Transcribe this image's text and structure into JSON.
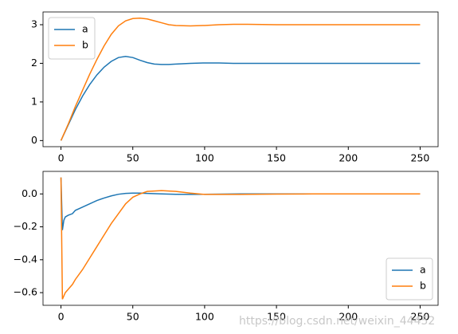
{
  "chart_data": [
    {
      "type": "line",
      "x": [
        0,
        5,
        10,
        15,
        20,
        25,
        30,
        35,
        40,
        45,
        50,
        55,
        60,
        65,
        70,
        75,
        80,
        90,
        100,
        110,
        120,
        130,
        150,
        175,
        200,
        225,
        250
      ],
      "series": [
        {
          "name": "a",
          "color": "#1f77b4",
          "values": [
            0,
            0.4,
            0.8,
            1.15,
            1.45,
            1.7,
            1.9,
            2.05,
            2.15,
            2.18,
            2.15,
            2.08,
            2.02,
            1.98,
            1.97,
            1.97,
            1.98,
            2.0,
            2.01,
            2.01,
            2.0,
            2.0,
            2.0,
            2.0,
            2.0,
            2.0,
            2.0
          ]
        },
        {
          "name": "b",
          "color": "#ff7f0e",
          "values": [
            0,
            0.42,
            0.88,
            1.3,
            1.72,
            2.1,
            2.45,
            2.75,
            2.97,
            3.1,
            3.16,
            3.17,
            3.15,
            3.1,
            3.05,
            3.0,
            2.98,
            2.97,
            2.98,
            3.0,
            3.01,
            3.01,
            3.0,
            3.0,
            3.0,
            3.0,
            3.0
          ]
        }
      ],
      "xlim": [
        -12.5,
        262.5
      ],
      "xticks": [
        0,
        50,
        100,
        150,
        200,
        250
      ],
      "ylim": [
        -0.158,
        3.33
      ],
      "yticks": [
        0,
        1,
        2,
        3
      ],
      "legend": "upper left"
    },
    {
      "type": "line",
      "x": [
        0,
        1,
        2,
        3,
        5,
        8,
        10,
        15,
        20,
        25,
        30,
        35,
        40,
        45,
        50,
        55,
        60,
        70,
        80,
        90,
        100,
        125,
        150,
        175,
        200,
        250
      ],
      "series": [
        {
          "name": "a",
          "color": "#1f77b4",
          "values": [
            0.1,
            -0.22,
            -0.16,
            -0.14,
            -0.13,
            -0.12,
            -0.1,
            -0.08,
            -0.06,
            -0.04,
            -0.025,
            -0.012,
            -0.002,
            0.003,
            0.005,
            0.005,
            0.003,
            0.0,
            -0.002,
            -0.003,
            -0.002,
            0,
            0,
            0,
            0,
            0
          ]
        },
        {
          "name": "b",
          "color": "#ff7f0e",
          "values": [
            0.1,
            -0.64,
            -0.62,
            -0.6,
            -0.58,
            -0.55,
            -0.52,
            -0.46,
            -0.39,
            -0.32,
            -0.25,
            -0.18,
            -0.12,
            -0.06,
            -0.02,
            0.0,
            0.015,
            0.02,
            0.015,
            0.005,
            -0.003,
            -0.003,
            -0.001,
            0,
            0,
            0
          ]
        }
      ],
      "xlim": [
        -12.5,
        262.5
      ],
      "xticks": [
        0,
        50,
        100,
        150,
        200,
        250
      ],
      "ylim": [
        -0.677,
        0.137
      ],
      "yticks": [
        {
          "value": -0.6,
          "label": "−0.6"
        },
        {
          "value": -0.4,
          "label": "−0.4"
        },
        {
          "value": -0.2,
          "label": "−0.2"
        },
        {
          "value": 0.0,
          "label": "0.0"
        }
      ],
      "legend": "lower right"
    }
  ],
  "watermark": "https://blog.csdn.net/weixin_44452"
}
